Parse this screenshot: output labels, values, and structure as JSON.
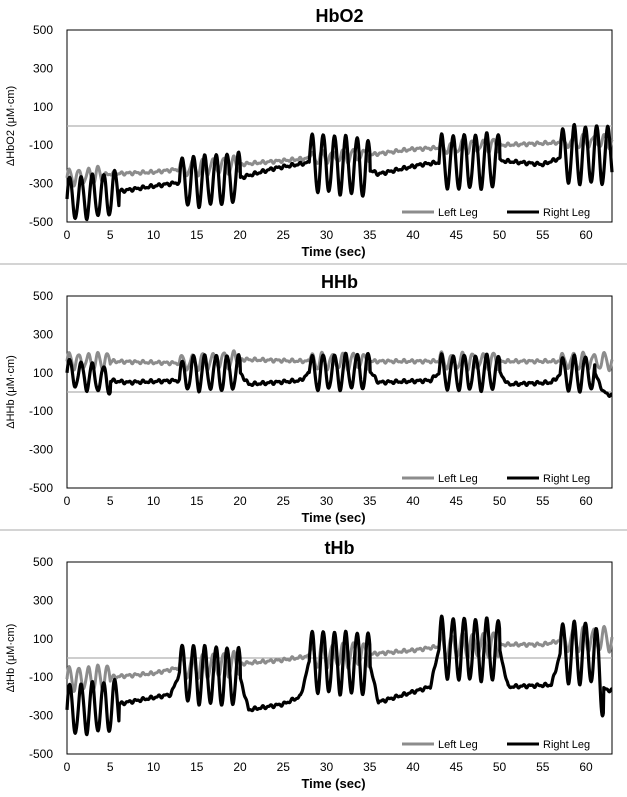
{
  "chart_data": [
    {
      "type": "line",
      "title": "HbO2",
      "ylabel": "ΔHbO2 (μM·cm)",
      "xlabel": "Time (sec)",
      "xlim": [
        0,
        63
      ],
      "ylim": [
        -500,
        500
      ],
      "xticks": [
        0,
        5,
        10,
        15,
        20,
        25,
        30,
        35,
        40,
        45,
        50,
        55,
        60
      ],
      "yticks": [
        500,
        300,
        100,
        -100,
        -300,
        -500
      ],
      "ytick_labels": [
        "500",
        "300",
        "100",
        "-100",
        "-300",
        "-500"
      ],
      "legend_position": "bottom-right",
      "series": [
        {
          "name": "Left Leg",
          "color": "#8c8c8c",
          "trend": [
            [
              0,
              -270
            ],
            [
              5,
              -250
            ],
            [
              10,
              -240
            ],
            [
              14,
              -220
            ],
            [
              20,
              -200
            ],
            [
              25,
              -180
            ],
            [
              30,
              -160
            ],
            [
              35,
              -150
            ],
            [
              40,
              -120
            ],
            [
              45,
              -110
            ],
            [
              50,
              -100
            ],
            [
              55,
              -90
            ],
            [
              60,
              -80
            ],
            [
              63,
              -80
            ]
          ],
          "segments": [
            [
              0,
              4,
              40,
              1.1
            ],
            [
              13,
              20,
              40,
              1.2
            ],
            [
              28,
              35,
              30,
              1.2
            ],
            [
              43,
              50,
              30,
              1.2
            ],
            [
              57,
              63,
              30,
              1.2
            ]
          ]
        },
        {
          "name": "Right Leg",
          "color": "#000000",
          "trend": [
            [
              0,
              -380
            ],
            [
              4,
              -360
            ],
            [
              6,
              -340
            ],
            [
              12,
              -300
            ],
            [
              14,
              -290
            ],
            [
              20,
              -270
            ],
            [
              24,
              -220
            ],
            [
              28,
              -190
            ],
            [
              34,
              -210
            ],
            [
              36,
              -250
            ],
            [
              41,
              -200
            ],
            [
              43,
              -190
            ],
            [
              50,
              -180
            ],
            [
              55,
              -200
            ],
            [
              58,
              -150
            ],
            [
              63,
              -150
            ]
          ],
          "segments": [
            [
              0,
              6,
              110,
              1.3
            ],
            [
              13,
              20,
              130,
              1.3
            ],
            [
              28,
              35,
              150,
              1.3
            ],
            [
              43,
              50,
              140,
              1.3
            ],
            [
              57,
              63,
              150,
              1.3
            ]
          ]
        }
      ]
    },
    {
      "type": "line",
      "title": "HHb",
      "ylabel": "ΔHHb (μM·cm)",
      "xlabel": "Time (sec)",
      "xlim": [
        0,
        63
      ],
      "ylim": [
        -500,
        500
      ],
      "xticks": [
        0,
        5,
        10,
        15,
        20,
        25,
        30,
        35,
        40,
        45,
        50,
        55,
        60
      ],
      "yticks": [
        500,
        300,
        100,
        -100,
        -300,
        -500
      ],
      "ytick_labels": [
        "500",
        "300",
        "100",
        "-100",
        "-300",
        "-500"
      ],
      "legend_position": "bottom-right",
      "series": [
        {
          "name": "Left Leg",
          "color": "#8c8c8c",
          "trend": [
            [
              0,
              160
            ],
            [
              5,
              160
            ],
            [
              13,
              150
            ],
            [
              20,
              170
            ],
            [
              28,
              160
            ],
            [
              35,
              160
            ],
            [
              43,
              160
            ],
            [
              50,
              160
            ],
            [
              57,
              160
            ],
            [
              63,
              160
            ]
          ],
          "segments": [
            [
              0,
              5,
              40,
              1.1
            ],
            [
              13,
              20,
              40,
              1.2
            ],
            [
              28,
              35,
              40,
              1.2
            ],
            [
              43,
              50,
              40,
              1.2
            ],
            [
              57,
              63,
              40,
              1.2
            ]
          ]
        },
        {
          "name": "Right Leg",
          "color": "#000000",
          "trend": [
            [
              0,
              100
            ],
            [
              5,
              60
            ],
            [
              7,
              50
            ],
            [
              13,
              60
            ],
            [
              14,
              100
            ],
            [
              20,
              100
            ],
            [
              21,
              40
            ],
            [
              27,
              60
            ],
            [
              28,
              100
            ],
            [
              35,
              110
            ],
            [
              36,
              50
            ],
            [
              42,
              60
            ],
            [
              43,
              100
            ],
            [
              50,
              100
            ],
            [
              51,
              40
            ],
            [
              56,
              50
            ],
            [
              57,
              90
            ],
            [
              61,
              100
            ],
            [
              62,
              0
            ],
            [
              63,
              -20
            ]
          ],
          "segments": [
            [
              0,
              5,
              70,
              1.3
            ],
            [
              13,
              20,
              90,
              1.3
            ],
            [
              28,
              35,
              90,
              1.3
            ],
            [
              43,
              50,
              90,
              1.3
            ],
            [
              57,
              61,
              90,
              1.3
            ]
          ]
        }
      ]
    },
    {
      "type": "line",
      "title": "tHb",
      "ylabel": "ΔtHb (μM·cm)",
      "xlabel": "Time (sec)",
      "xlim": [
        0,
        63
      ],
      "ylim": [
        -500,
        500
      ],
      "xticks": [
        0,
        5,
        10,
        15,
        20,
        25,
        30,
        35,
        40,
        45,
        50,
        55,
        60
      ],
      "yticks": [
        500,
        300,
        100,
        -100,
        -300,
        -500
      ],
      "ytick_labels": [
        "500",
        "300",
        "100",
        "-100",
        "-300",
        "-500"
      ],
      "legend_position": "bottom-right",
      "series": [
        {
          "name": "Left Leg",
          "color": "#8c8c8c",
          "trend": [
            [
              0,
              -110
            ],
            [
              5,
              -100
            ],
            [
              10,
              -80
            ],
            [
              13,
              -50
            ],
            [
              20,
              -30
            ],
            [
              25,
              -10
            ],
            [
              28,
              10
            ],
            [
              35,
              20
            ],
            [
              40,
              40
            ],
            [
              43,
              60
            ],
            [
              50,
              70
            ],
            [
              55,
              70
            ],
            [
              57,
              90
            ],
            [
              63,
              100
            ]
          ],
          "segments": [
            [
              0,
              5,
              60,
              1.1
            ],
            [
              13,
              20,
              60,
              1.2
            ],
            [
              28,
              35,
              60,
              1.2
            ],
            [
              43,
              50,
              60,
              1.2
            ],
            [
              57,
              63,
              60,
              1.2
            ]
          ]
        },
        {
          "name": "Right Leg",
          "color": "#000000",
          "trend": [
            [
              0,
              -270
            ],
            [
              5,
              -250
            ],
            [
              7,
              -230
            ],
            [
              12,
              -190
            ],
            [
              13,
              -80
            ],
            [
              20,
              -100
            ],
            [
              21,
              -270
            ],
            [
              25,
              -240
            ],
            [
              27,
              -200
            ],
            [
              28,
              -20
            ],
            [
              35,
              -30
            ],
            [
              36,
              -230
            ],
            [
              42,
              -150
            ],
            [
              43,
              50
            ],
            [
              50,
              40
            ],
            [
              51,
              -150
            ],
            [
              56,
              -140
            ],
            [
              57,
              20
            ],
            [
              61,
              30
            ],
            [
              62,
              -160
            ],
            [
              63,
              -170
            ]
          ],
          "segments": [
            [
              0,
              6,
              130,
              1.3
            ],
            [
              13,
              20,
              150,
              1.3
            ],
            [
              28,
              35,
              160,
              1.3
            ],
            [
              43,
              50,
              160,
              1.3
            ],
            [
              57,
              62,
              160,
              1.3
            ]
          ]
        }
      ]
    }
  ]
}
